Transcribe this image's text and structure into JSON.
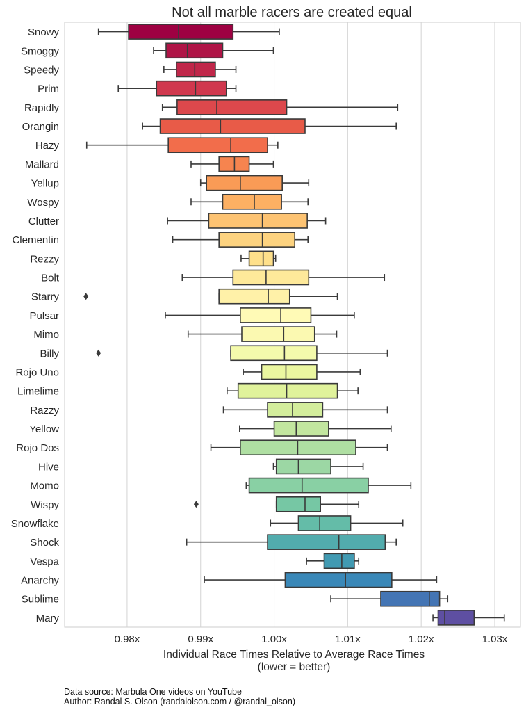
{
  "chart_data": {
    "type": "boxplot",
    "orientation": "horizontal",
    "title": "Not all marble racers are created equal",
    "xlabel": "Individual Race Times Relative to Average Race Times",
    "xlabel_note": "(lower = better)",
    "ylabel": "",
    "xlim": [
      0.9715,
      1.0335
    ],
    "xticks": [
      0.98,
      0.99,
      1.0,
      1.01,
      1.02,
      1.03
    ],
    "xtick_labels": [
      "0.98x",
      "0.99x",
      "1.00x",
      "1.01x",
      "1.02x",
      "1.03x"
    ],
    "grid": "vertical",
    "palette": "Spectral",
    "racers": [
      {
        "name": "Snowy",
        "whisker_low": 0.9761,
        "q1": 0.9802,
        "median": 0.987,
        "q3": 0.9944,
        "whisker_high": 1.0007,
        "outliers": [],
        "color": "#9e0142"
      },
      {
        "name": "Smoggy",
        "whisker_low": 0.9836,
        "q1": 0.9853,
        "median": 0.9882,
        "q3": 0.993,
        "whisker_high": 0.9999,
        "outliers": [],
        "color": "#af1446"
      },
      {
        "name": "Speedy",
        "whisker_low": 0.985,
        "q1": 0.9867,
        "median": 0.9892,
        "q3": 0.992,
        "whisker_high": 0.9948,
        "outliers": [],
        "color": "#c0274a"
      },
      {
        "name": "Prim",
        "whisker_low": 0.9788,
        "q1": 0.984,
        "median": 0.9893,
        "q3": 0.9935,
        "whisker_high": 0.9948,
        "outliers": [],
        "color": "#d0384e"
      },
      {
        "name": "Rapidly",
        "whisker_low": 0.9848,
        "q1": 0.9868,
        "median": 0.9922,
        "q3": 1.0017,
        "whisker_high": 1.0168,
        "outliers": [],
        "color": "#dc484c"
      },
      {
        "name": "Orangin",
        "whisker_low": 0.9821,
        "q1": 0.9845,
        "median": 0.9927,
        "q3": 1.0042,
        "whisker_high": 1.0166,
        "outliers": [],
        "color": "#e85b48"
      },
      {
        "name": "Hazy",
        "whisker_low": 0.9745,
        "q1": 0.9856,
        "median": 0.9941,
        "q3": 0.9991,
        "whisker_high": 1.0005,
        "outliers": [],
        "color": "#f26d4b"
      },
      {
        "name": "Mallard",
        "whisker_low": 0.9887,
        "q1": 0.9925,
        "median": 0.9946,
        "q3": 0.9966,
        "whisker_high": 0.9999,
        "outliers": [],
        "color": "#f6844f"
      },
      {
        "name": "Yellup",
        "whisker_low": 0.99,
        "q1": 0.9908,
        "median": 0.9954,
        "q3": 1.0011,
        "whisker_high": 1.0047,
        "outliers": [],
        "color": "#f99b56"
      },
      {
        "name": "Wospy",
        "whisker_low": 0.9887,
        "q1": 0.993,
        "median": 0.9973,
        "q3": 1.001,
        "whisker_high": 1.0046,
        "outliers": [],
        "color": "#fcb063"
      },
      {
        "name": "Clutter",
        "whisker_low": 0.9855,
        "q1": 0.9911,
        "median": 0.9984,
        "q3": 1.0045,
        "whisker_high": 1.007,
        "outliers": [],
        "color": "#fdc372"
      },
      {
        "name": "Clementin",
        "whisker_low": 0.9862,
        "q1": 0.9925,
        "median": 0.9984,
        "q3": 1.0028,
        "whisker_high": 1.0046,
        "outliers": [],
        "color": "#fdd380"
      },
      {
        "name": "Rezzy",
        "whisker_low": 0.9955,
        "q1": 0.9966,
        "median": 0.9985,
        "q3": 0.9999,
        "whisker_high": 1.0002,
        "outliers": [],
        "color": "#fee08b"
      },
      {
        "name": "Bolt",
        "whisker_low": 0.9875,
        "q1": 0.9944,
        "median": 0.9989,
        "q3": 1.0047,
        "whisker_high": 1.015,
        "outliers": [],
        "color": "#fee99a"
      },
      {
        "name": "Starry",
        "whisker_low": 0.9925,
        "q1": 0.9925,
        "median": 0.9992,
        "q3": 1.0021,
        "whisker_high": 1.0086,
        "outliers": [
          0.9744
        ],
        "color": "#fff1a8"
      },
      {
        "name": "Pulsar",
        "whisker_low": 0.9852,
        "q1": 0.9954,
        "median": 1.0009,
        "q3": 1.005,
        "whisker_high": 1.0109,
        "outliers": [],
        "color": "#fffab6"
      },
      {
        "name": "Mimo",
        "whisker_low": 0.9883,
        "q1": 0.9956,
        "median": 1.0013,
        "q3": 1.0055,
        "whisker_high": 1.0085,
        "outliers": [],
        "color": "#fbf9b1"
      },
      {
        "name": "Billy",
        "whisker_low": 0.9941,
        "q1": 0.9941,
        "median": 1.0014,
        "q3": 1.0058,
        "whisker_high": 1.0154,
        "outliers": [
          0.9761
        ],
        "color": "#f4faac"
      },
      {
        "name": "Rojo Uno",
        "whisker_low": 0.9958,
        "q1": 0.9983,
        "median": 1.0016,
        "q3": 1.0058,
        "whisker_high": 1.0117,
        "outliers": [],
        "color": "#ebf7a0"
      },
      {
        "name": "Limelime",
        "whisker_low": 0.9936,
        "q1": 0.9951,
        "median": 1.0017,
        "q3": 1.0086,
        "whisker_high": 1.0114,
        "outliers": [],
        "color": "#e0f29b"
      },
      {
        "name": "Razzy",
        "whisker_low": 0.9931,
        "q1": 0.9991,
        "median": 1.0025,
        "q3": 1.0066,
        "whisker_high": 1.0154,
        "outliers": [],
        "color": "#d3ed9c"
      },
      {
        "name": "Yellow",
        "whisker_low": 0.9953,
        "q1": 1.0,
        "median": 1.003,
        "q3": 1.0074,
        "whisker_high": 1.0159,
        "outliers": [],
        "color": "#c2e69f"
      },
      {
        "name": "Rojo Dos",
        "whisker_low": 0.9914,
        "q1": 0.9954,
        "median": 1.0032,
        "q3": 1.0111,
        "whisker_high": 1.0154,
        "outliers": [],
        "color": "#afdfa2"
      },
      {
        "name": "Hive",
        "whisker_low": 0.9999,
        "q1": 1.0003,
        "median": 1.0033,
        "q3": 1.0077,
        "whisker_high": 1.0121,
        "outliers": [],
        "color": "#9cd7a4"
      },
      {
        "name": "Momo",
        "whisker_low": 0.9962,
        "q1": 0.9966,
        "median": 1.0038,
        "q3": 1.0128,
        "whisker_high": 1.0186,
        "outliers": [],
        "color": "#89d0a4"
      },
      {
        "name": "Wispy",
        "whisker_low": 1.0003,
        "q1": 1.0003,
        "median": 1.0042,
        "q3": 1.0063,
        "whisker_high": 1.0115,
        "outliers": [
          0.9894
        ],
        "color": "#76c7a4"
      },
      {
        "name": "Snowflake",
        "whisker_low": 0.9995,
        "q1": 1.0033,
        "median": 1.0062,
        "q3": 1.0104,
        "whisker_high": 1.0175,
        "outliers": [],
        "color": "#64bca8"
      },
      {
        "name": "Shock",
        "whisker_low": 0.9881,
        "q1": 0.9991,
        "median": 1.0088,
        "q3": 1.0151,
        "whisker_high": 1.0166,
        "outliers": [],
        "color": "#52acad"
      },
      {
        "name": "Vespa",
        "whisker_low": 1.0044,
        "q1": 1.0068,
        "median": 1.0092,
        "q3": 1.0109,
        "whisker_high": 1.0115,
        "outliers": [],
        "color": "#419ab2"
      },
      {
        "name": "Anarchy",
        "whisker_low": 0.9905,
        "q1": 1.0015,
        "median": 1.0097,
        "q3": 1.016,
        "whisker_high": 1.0221,
        "outliers": [],
        "color": "#3a88b8"
      },
      {
        "name": "Sublime",
        "whisker_low": 1.0077,
        "q1": 1.0145,
        "median": 1.0211,
        "q3": 1.0225,
        "whisker_high": 1.0236,
        "outliers": [],
        "color": "#4475b4"
      },
      {
        "name": "Mary",
        "whisker_low": 1.0216,
        "q1": 1.0223,
        "median": 1.0232,
        "q3": 1.0272,
        "whisker_high": 1.0313,
        "outliers": [],
        "color": "#5e4fa2"
      }
    ]
  },
  "footer": {
    "source": "Data source: Marbula One videos on YouTube",
    "author": "Author: Randal S. Olson (randalolson.com / @randal_olson)"
  }
}
